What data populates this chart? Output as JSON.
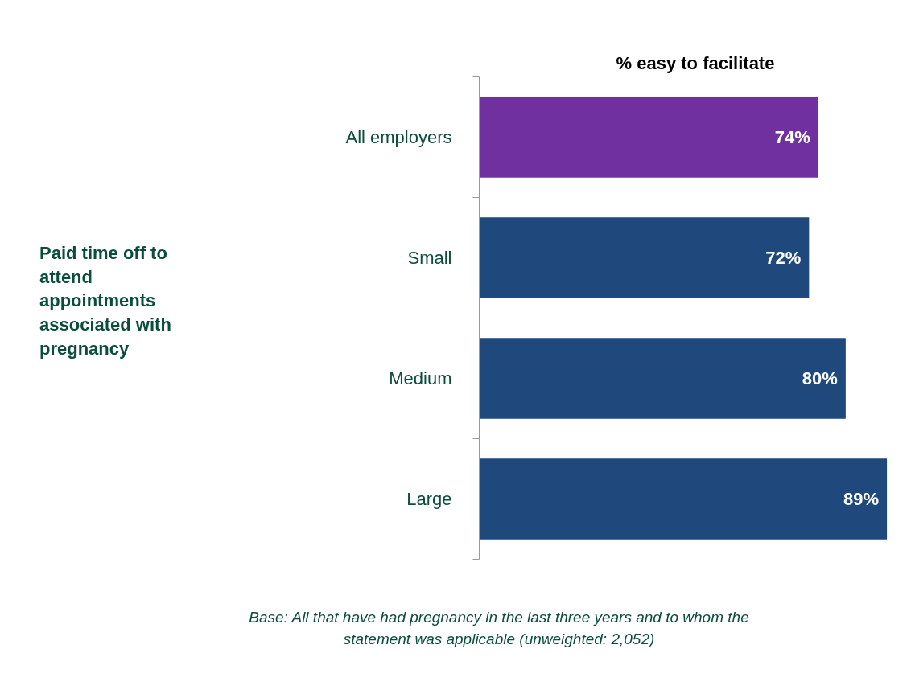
{
  "chart_data": {
    "type": "bar",
    "orientation": "horizontal",
    "title": "% easy to facilitate",
    "categories": [
      "All employers",
      "Small",
      "Medium",
      "Large"
    ],
    "values": [
      74,
      72,
      80,
      89
    ],
    "value_labels": [
      "74%",
      "72%",
      "80%",
      "89%"
    ],
    "colors": [
      "#7030a0",
      "#1f497d",
      "#1f497d",
      "#1f497d"
    ],
    "grid": false,
    "tick_labels": "y",
    "annotations": [
      "Paid time off to attend appointments associated with pregnancy",
      "Base: All that have had pregnancy in the last three years and to whom the statement was applicable (unweighted: 2,052)"
    ]
  }
}
